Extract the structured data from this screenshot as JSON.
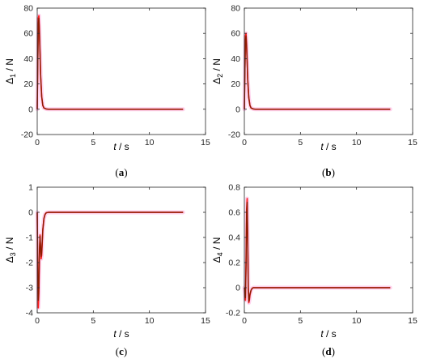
{
  "chart_data": [
    {
      "type": "line",
      "panel": "a",
      "caption": "(a)",
      "ylabel_sym": "Δ",
      "ylabel_sub": "1",
      "ylabel_unit": " / N",
      "xlabel_var": "t",
      "xlabel_unit": " / s",
      "xlim": [
        0,
        15
      ],
      "ylim": [
        -20,
        80
      ],
      "xticks": [
        0,
        5,
        10,
        15
      ],
      "yticks": [
        -20,
        0,
        20,
        40,
        60,
        80
      ],
      "grid": false,
      "series": [
        {
          "color": "#ff1a1a",
          "x": [
            0,
            0.05,
            0.1,
            0.15,
            0.2,
            0.25,
            0.3,
            0.4,
            0.5,
            0.6,
            0.8,
            1.0,
            2,
            5,
            13
          ],
          "y": [
            0,
            40,
            72,
            74,
            62,
            45,
            28,
            10,
            3,
            1,
            0.2,
            0,
            0,
            0,
            0
          ]
        },
        {
          "color": "#8b1a00",
          "x": [
            0,
            0.05,
            0.1,
            0.15,
            0.2,
            0.25,
            0.3,
            0.4,
            0.5,
            0.6,
            0.8,
            1.0,
            2,
            5,
            13
          ],
          "y": [
            0,
            35,
            68,
            72,
            60,
            44,
            27,
            10,
            3,
            1,
            0.2,
            0,
            0,
            0,
            0
          ]
        }
      ]
    },
    {
      "type": "line",
      "panel": "b",
      "caption": "(b)",
      "ylabel_sym": "Δ",
      "ylabel_sub": "2",
      "ylabel_unit": " / N",
      "xlabel_var": "t",
      "xlabel_unit": " / s",
      "xlim": [
        0,
        15
      ],
      "ylim": [
        -20,
        80
      ],
      "xticks": [
        0,
        5,
        10,
        15
      ],
      "yticks": [
        -20,
        0,
        20,
        40,
        60,
        80
      ],
      "grid": false,
      "series": [
        {
          "color": "#ff1a1a",
          "x": [
            0,
            0.05,
            0.1,
            0.15,
            0.2,
            0.25,
            0.3,
            0.4,
            0.5,
            0.6,
            0.8,
            1.0,
            2,
            5,
            13
          ],
          "y": [
            0,
            32,
            58,
            60,
            52,
            38,
            24,
            9,
            3,
            1,
            0.2,
            0,
            0,
            0,
            0
          ]
        },
        {
          "color": "#8b1a00",
          "x": [
            0,
            0.05,
            0.1,
            0.15,
            0.2,
            0.25,
            0.3,
            0.4,
            0.5,
            0.6,
            0.8,
            1.0,
            2,
            5,
            13
          ],
          "y": [
            0,
            28,
            55,
            58,
            50,
            37,
            23,
            9,
            3,
            1,
            0.2,
            0,
            0,
            0,
            0
          ]
        }
      ]
    },
    {
      "type": "line",
      "panel": "c",
      "caption": "(c)",
      "ylabel_sym": "Δ",
      "ylabel_sub": "3",
      "ylabel_unit": " / N",
      "xlabel_var": "t",
      "xlabel_unit": " / s",
      "xlim": [
        0,
        15
      ],
      "ylim": [
        -4,
        1
      ],
      "xticks": [
        0,
        5,
        10,
        15
      ],
      "yticks": [
        -4,
        -3,
        -2,
        -1,
        0,
        1
      ],
      "grid": false,
      "series": [
        {
          "color": "#ff1a1a",
          "x": [
            0,
            0.05,
            0.1,
            0.15,
            0.2,
            0.25,
            0.3,
            0.35,
            0.4,
            0.45,
            0.5,
            0.6,
            0.7,
            0.8,
            1.0,
            2,
            5,
            13
          ],
          "y": [
            0,
            -2.5,
            -3.8,
            -3.2,
            -1.6,
            -0.9,
            -1.4,
            -1.85,
            -1.7,
            -1.2,
            -0.7,
            -0.25,
            -0.08,
            -0.02,
            0,
            0,
            0,
            0
          ]
        },
        {
          "color": "#8b1a00",
          "x": [
            0,
            0.05,
            0.1,
            0.15,
            0.2,
            0.25,
            0.3,
            0.35,
            0.4,
            0.45,
            0.5,
            0.6,
            0.7,
            0.8,
            1.0,
            2,
            5,
            13
          ],
          "y": [
            0,
            -2.2,
            -3.5,
            -3.0,
            -1.5,
            -0.95,
            -1.35,
            -1.75,
            -1.6,
            -1.15,
            -0.68,
            -0.24,
            -0.08,
            -0.02,
            0,
            0,
            0,
            0
          ]
        }
      ]
    },
    {
      "type": "line",
      "panel": "d",
      "caption": "(d)",
      "ylabel_sym": "Δ",
      "ylabel_sub": "4",
      "ylabel_unit": " / N",
      "xlabel_var": "t",
      "xlabel_unit": " / s",
      "xlim": [
        0,
        15
      ],
      "ylim": [
        -0.2,
        0.8
      ],
      "xticks": [
        0,
        5,
        10,
        15
      ],
      "yticks": [
        -0.2,
        0,
        0.2,
        0.4,
        0.6,
        0.8
      ],
      "grid": false,
      "series": [
        {
          "color": "#ff1a1a",
          "x": [
            0,
            0.05,
            0.1,
            0.15,
            0.2,
            0.25,
            0.3,
            0.35,
            0.4,
            0.45,
            0.5,
            0.6,
            0.7,
            0.8,
            1.0,
            2,
            5,
            13
          ],
          "y": [
            0,
            -0.05,
            -0.1,
            0.2,
            0.62,
            0.71,
            0.4,
            0.0,
            -0.12,
            -0.1,
            -0.06,
            -0.02,
            -0.005,
            0,
            0,
            0,
            0,
            0
          ]
        },
        {
          "color": "#8b1a00",
          "x": [
            0,
            0.05,
            0.1,
            0.15,
            0.2,
            0.25,
            0.3,
            0.35,
            0.4,
            0.45,
            0.5,
            0.6,
            0.7,
            0.8,
            1.0,
            2,
            5,
            13
          ],
          "y": [
            0,
            -0.04,
            -0.08,
            0.18,
            0.58,
            0.68,
            0.38,
            0.0,
            -0.11,
            -0.09,
            -0.05,
            -0.02,
            -0.005,
            0,
            0,
            0,
            0,
            0
          ]
        }
      ]
    }
  ]
}
